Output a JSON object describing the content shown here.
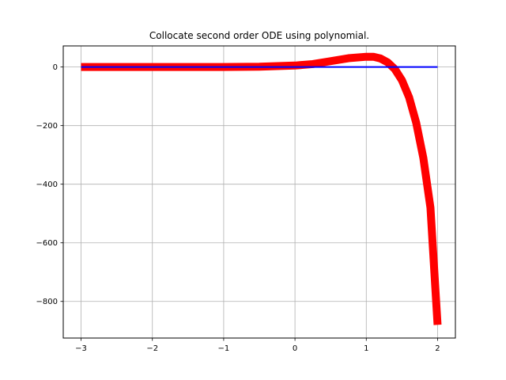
{
  "chart_data": {
    "type": "line",
    "title": "Collocate second order ODE using polynomial.",
    "xlabel": "",
    "ylabel": "",
    "xlim": [
      -3.25,
      2.25
    ],
    "ylim": [
      -925,
      72
    ],
    "grid": true,
    "xticks": [
      -3,
      -2,
      -1,
      0,
      1,
      2
    ],
    "yticks": [
      0,
      -200,
      -400,
      -600,
      -800
    ],
    "series": [
      {
        "color": "#ff0000",
        "linewidth": "thick",
        "x": [
          -3.0,
          -2.5,
          -2.0,
          -1.5,
          -1.0,
          -0.5,
          0.0,
          0.25,
          0.5,
          0.75,
          1.0,
          1.1,
          1.2,
          1.3,
          1.4,
          1.5,
          1.6,
          1.7,
          1.8,
          1.9,
          2.0
        ],
        "y": [
          0,
          0,
          0,
          0,
          0,
          1,
          5,
          10,
          20,
          30,
          35,
          35,
          29,
          16,
          -7,
          -45,
          -103,
          -190,
          -310,
          -480,
          -880
        ]
      },
      {
        "color": "#0000ff",
        "linewidth": "normal",
        "x": [
          -3.0,
          2.0
        ],
        "y": [
          0,
          0
        ]
      }
    ]
  }
}
